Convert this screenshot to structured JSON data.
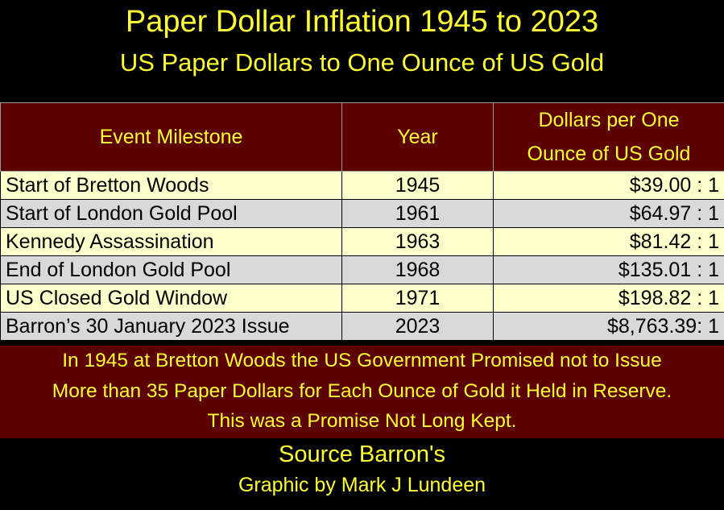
{
  "header": {
    "title": "Paper Dollar Inflation 1945 to 2023",
    "subtitle": "US Paper Dollars to One Ounce of US Gold"
  },
  "table": {
    "columns": [
      "Event Milestone",
      "Year",
      [
        "Dollars per One",
        "Ounce of US Gold"
      ]
    ],
    "rows": [
      [
        "Start of Bretton Woods",
        "1945",
        "$39.00 : 1"
      ],
      [
        "Start of London Gold Pool",
        "1961",
        "$64.97 : 1"
      ],
      [
        "Kennedy Assassination",
        "1963",
        "$81.42 : 1"
      ],
      [
        "End of London Gold Pool",
        "1968",
        "$135.01 : 1"
      ],
      [
        "US Closed Gold Window",
        "1971",
        "$198.82 : 1"
      ],
      [
        "Barron’s 30 January 2023 Issue",
        "2023",
        "$8,763.39: 1"
      ]
    ]
  },
  "note": [
    "In 1945 at Bretton Woods the US Government Promised not to Issue",
    "More than 35 Paper Dollars for Each Ounce of Gold it Held in Reserve.",
    "This was a Promise Not Long Kept."
  ],
  "footer": {
    "source": "Source Barron's",
    "credit": "Graphic by Mark J Lundeen"
  }
}
